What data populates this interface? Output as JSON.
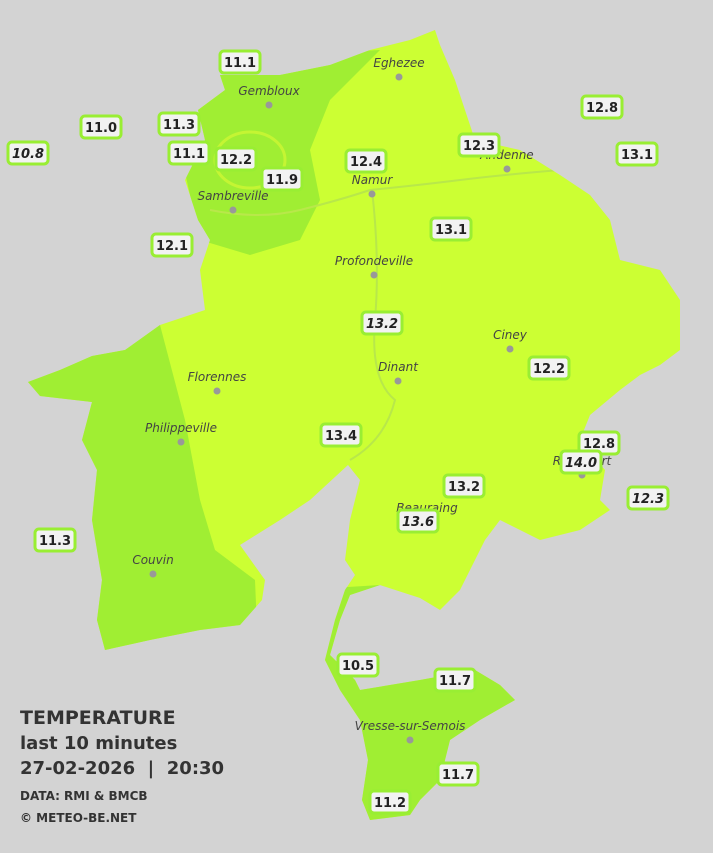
{
  "stations": [
    "11.1",
    "11.0",
    "10.8",
    "11.3",
    "11.1",
    "12.2",
    "11.9",
    "12.4",
    "12.3",
    "12.8",
    "13.1",
    "12.1",
    "13.1",
    "13.2",
    "12.2",
    "13.4",
    "12.8",
    "14.0",
    "12.3",
    "13.2",
    "13.6",
    "11.3",
    "10.5",
    "11.7",
    "11.7",
    "11.2"
  ],
  "cities": [
    "Eghezee",
    "Gembloux",
    "Andenne",
    "Namur",
    "Sambreville",
    "Profondeville",
    "Ciney",
    "Florennes",
    "Dinant",
    "Philippeville",
    "Beauraing",
    "Rochefort",
    "Couvin",
    "Vresse-sur-Semois"
  ],
  "legend": {
    "title": "TEMPERATURE",
    "subtitle": "last 10 minutes",
    "datetime": "27-02-2026  |  20:30",
    "source": "DATA: RMI & BMCB",
    "credit": "© METEO-BE.NET"
  }
}
